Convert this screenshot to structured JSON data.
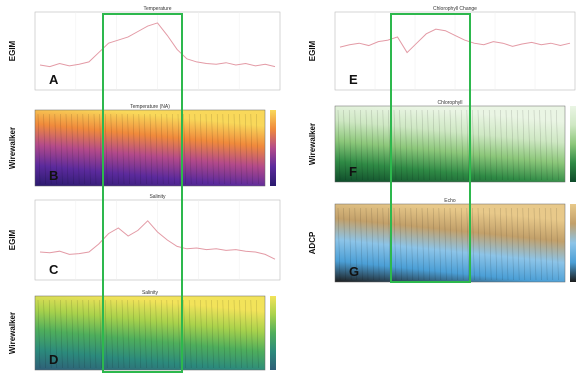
{
  "chart_data": [
    {
      "type": "line",
      "panel": "A",
      "side_label": "EGIM",
      "title": "Temperature",
      "color": "#e39aa5",
      "ylim": [
        0,
        10
      ],
      "values": [
        3.2,
        3.0,
        3.4,
        3.1,
        3.3,
        3.6,
        4.8,
        6.0,
        6.4,
        6.8,
        7.5,
        8.2,
        8.6,
        7.0,
        5.2,
        4.0,
        3.6,
        3.4,
        3.3,
        3.5,
        3.2,
        3.4,
        3.1,
        3.3,
        3.0
      ]
    },
    {
      "type": "heatmap",
      "panel": "B",
      "side_label": "Wirewalker",
      "title": "Temperature (NA)",
      "colors": [
        "#2a1a6e",
        "#5b2a9c",
        "#b34a8a",
        "#f08a3c",
        "#f9d85a"
      ]
    },
    {
      "type": "line",
      "panel": "C",
      "side_label": "EGIM",
      "title": "Salinity",
      "color": "#e39aa5",
      "ylim": [
        0,
        10
      ],
      "values": [
        3.5,
        3.4,
        3.6,
        3.2,
        3.3,
        3.5,
        4.5,
        5.8,
        6.5,
        5.5,
        6.2,
        7.4,
        6.0,
        5.0,
        4.2,
        3.9,
        4.0,
        3.8,
        3.9,
        3.7,
        3.8,
        3.6,
        3.5,
        3.2,
        2.6
      ]
    },
    {
      "type": "heatmap",
      "panel": "D",
      "side_label": "Wirewalker",
      "title": "Salinity",
      "colors": [
        "#2e5e78",
        "#2c8a7c",
        "#4fae5c",
        "#a9d24c",
        "#f2e35a"
      ]
    },
    {
      "type": "line",
      "panel": "E",
      "side_label": "EGIM",
      "title": "Chlorophyll Change",
      "color": "#e39aa5",
      "ylim": [
        0,
        10
      ],
      "values": [
        5.5,
        5.8,
        6.0,
        5.7,
        6.2,
        6.4,
        6.8,
        4.8,
        6.0,
        7.2,
        7.8,
        7.6,
        7.0,
        6.4,
        6.0,
        5.8,
        6.2,
        6.0,
        5.6,
        5.9,
        6.1,
        5.8,
        6.0,
        5.7,
        6.0
      ]
    },
    {
      "type": "heatmap",
      "panel": "F",
      "side_label": "Wirewalker",
      "title": "Chlorophyll",
      "colors": [
        "#0e4a2a",
        "#2f8a45",
        "#8cc77a",
        "#cfe8c4",
        "#eaf5e4"
      ]
    },
    {
      "type": "heatmap",
      "panel": "G",
      "side_label": "ADCP",
      "title": "Echo",
      "colors": [
        "#1c1c1c",
        "#4b9fd6",
        "#8cc4e8",
        "#c2a06a",
        "#e8c98a"
      ]
    }
  ]
}
